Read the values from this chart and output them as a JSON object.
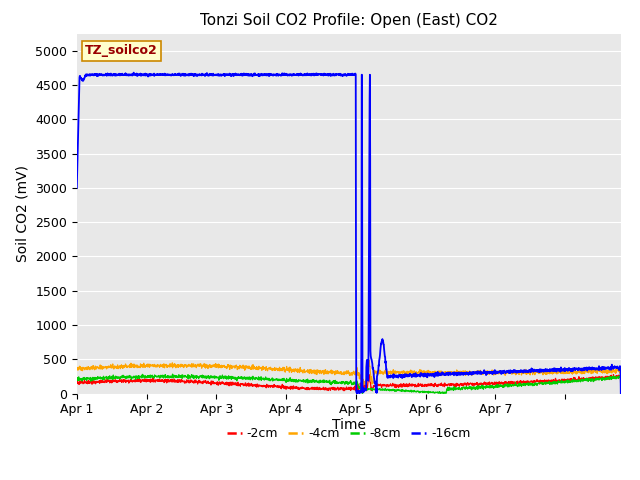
{
  "title": "Tonzi Soil CO2 Profile: Open (East) CO2",
  "xlabel": "Time",
  "ylabel": "Soil CO2 (mV)",
  "legend_label": "TZ_soilco2",
  "ylim": [
    0,
    5250
  ],
  "yticks": [
    0,
    500,
    1000,
    1500,
    2000,
    2500,
    3000,
    3500,
    4000,
    4500,
    5000
  ],
  "series_labels": [
    "-2cm",
    "-4cm",
    "-8cm",
    "-16cm"
  ],
  "series_colors": [
    "#ff0000",
    "#ffa500",
    "#00cc00",
    "#0000ff"
  ],
  "background_color": "#e8e8e8",
  "title_fontsize": 11,
  "axis_fontsize": 10,
  "tick_fontsize": 9,
  "legend_box_color": "#ffffcc",
  "legend_box_edge": "#cc8800",
  "legend_text_color": "#990000"
}
